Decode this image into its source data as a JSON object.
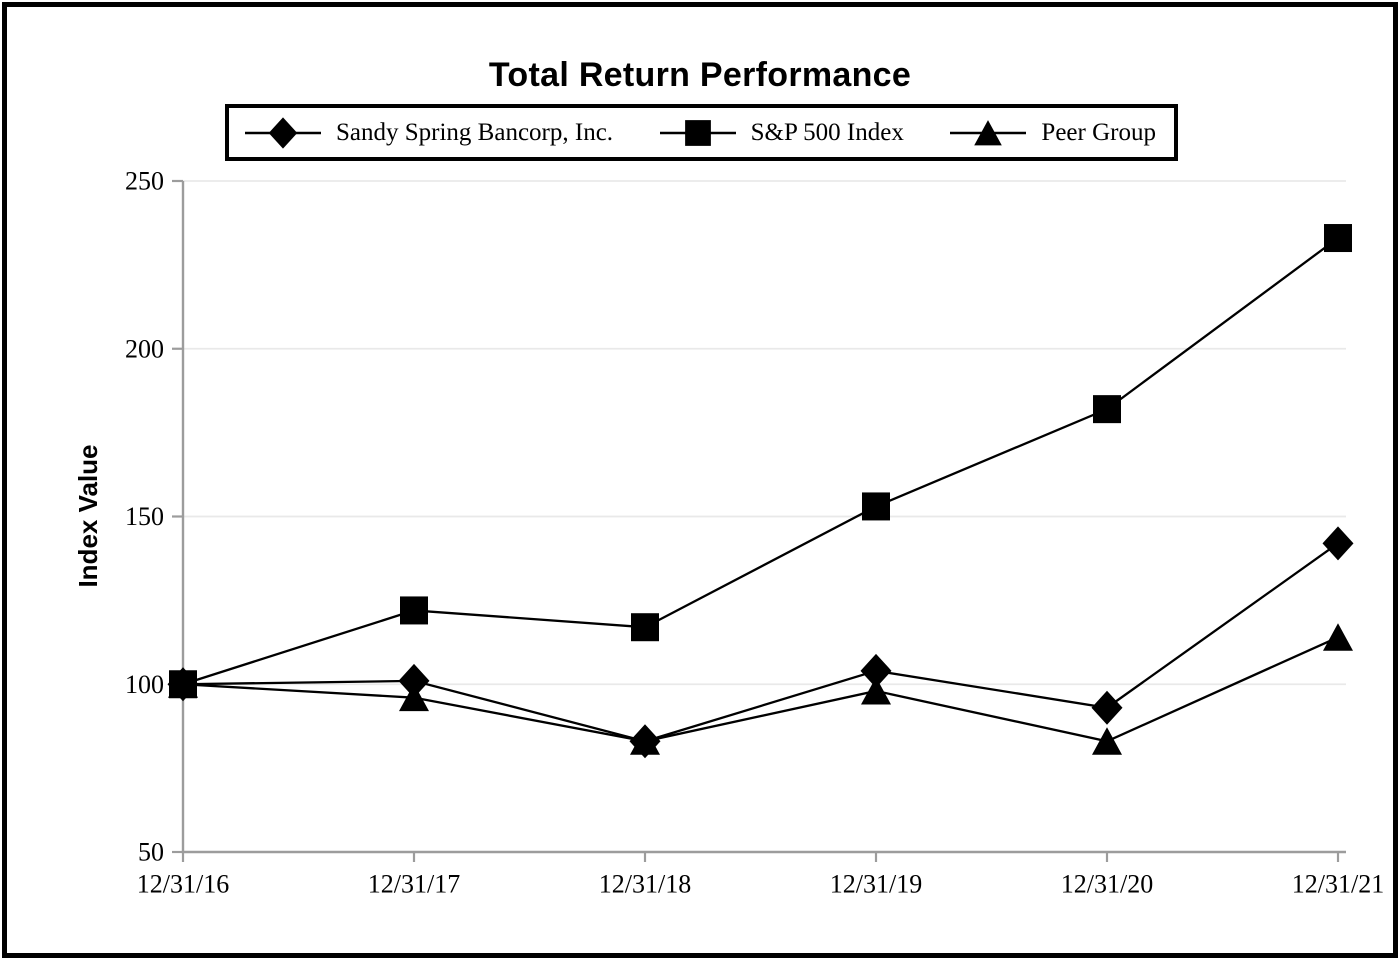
{
  "title": "Total Return Performance",
  "legend": {
    "items": [
      {
        "label": "Sandy Spring Bancorp, Inc.",
        "marker": "diamond"
      },
      {
        "label": "S&P 500 Index",
        "marker": "square"
      },
      {
        "label": "Peer Group",
        "marker": "triangle"
      }
    ]
  },
  "chart_data": {
    "type": "line",
    "title": "Total Return Performance",
    "xlabel": "",
    "ylabel": "Index Value",
    "categories": [
      "12/31/16",
      "12/31/17",
      "12/31/18",
      "12/31/19",
      "12/31/20",
      "12/31/21"
    ],
    "series": [
      {
        "name": "Sandy Spring Bancorp, Inc.",
        "marker": "diamond",
        "values": [
          100,
          101,
          83,
          104,
          93,
          142
        ]
      },
      {
        "name": "S&P 500 Index",
        "marker": "square",
        "values": [
          100,
          122,
          117,
          153,
          182,
          233
        ]
      },
      {
        "name": "Peer Group",
        "marker": "triangle",
        "values": [
          100,
          96,
          83,
          98,
          83,
          114
        ]
      }
    ],
    "ylim": [
      50,
      250
    ],
    "yticks": [
      50,
      100,
      150,
      200,
      250
    ],
    "grid": true,
    "legend_position": "top",
    "line_color": "#000000",
    "gridline_color": "#e9e9e9",
    "axis_color": "#9c9c9c",
    "text_color": "#000000"
  }
}
